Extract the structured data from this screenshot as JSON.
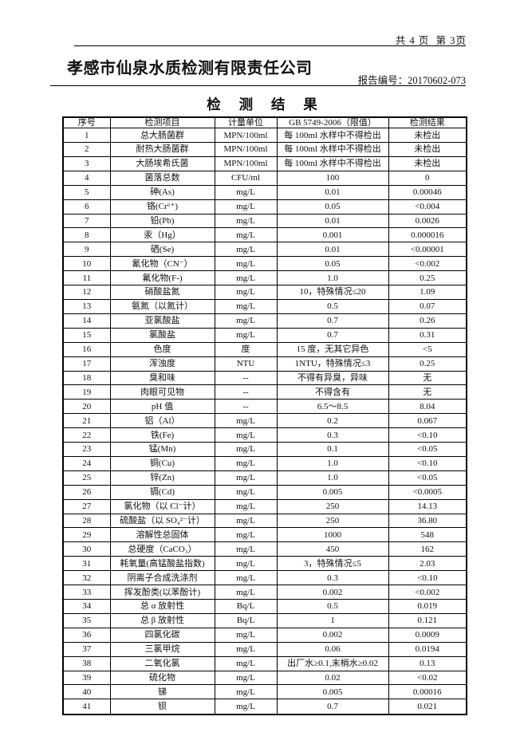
{
  "header": {
    "page_info": "共 4 页  第 3页",
    "company": "孝感市仙泉水质检测有限责任公司",
    "report_no_label": "报告编号：",
    "report_no": "20170602-073"
  },
  "title": "检 测 结 果",
  "table": {
    "headers": [
      "序号",
      "检测项目",
      "计量单位",
      "GB 5749-2006（限值）",
      "检测结果"
    ],
    "rows": [
      [
        "1",
        "总大肠菌群",
        "MPN/100ml",
        "每 100ml 水样中不得检出",
        "未检出"
      ],
      [
        "2",
        "耐热大肠菌群",
        "MPN/100ml",
        "每 100ml 水样中不得检出",
        "未检出"
      ],
      [
        "3",
        "大肠埃希氏菌",
        "MPN/100ml",
        "每 100ml 水样中不得检出",
        "未检出"
      ],
      [
        "4",
        "菌落总数",
        "CFU/ml",
        "100",
        "0"
      ],
      [
        "5",
        "砷(As)",
        "mg/L",
        "0.01",
        "0.00046"
      ],
      [
        "6",
        "铬(Cr⁶⁺)",
        "mg/L",
        "0.05",
        "<0.004"
      ],
      [
        "7",
        "铅(Pb)",
        "mg/L",
        "0.01",
        "0.0026"
      ],
      [
        "8",
        "汞（Hg）",
        "mg/L",
        "0.001",
        "0.000016"
      ],
      [
        "9",
        "硒(Se)",
        "mg/L",
        "0.01",
        "<0.00001"
      ],
      [
        "10",
        "氰化物（CN⁻）",
        "mg/L",
        "0.05",
        "<0.002"
      ],
      [
        "11",
        "氟化物(F-)",
        "mg/L",
        "1.0",
        "0.25"
      ],
      [
        "12",
        "硝酸盐氮",
        "mg/L",
        "10，特殊情况≤20",
        "1.09"
      ],
      [
        "13",
        "氨氮（以氮计）",
        "mg/L",
        "0.5",
        "0.07"
      ],
      [
        "14",
        "亚氯酸盐",
        "mg/L",
        "0.7",
        "0.26"
      ],
      [
        "15",
        "氯酸盐",
        "mg/L",
        "0.7",
        "0.31"
      ],
      [
        "16",
        "色度",
        "度",
        "15 度，无其它异色",
        "<5"
      ],
      [
        "17",
        "浑浊度",
        "NTU",
        "1NTU，特殊情况≤3",
        "0.25"
      ],
      [
        "18",
        "臭和味",
        "--",
        "不得有异臭，异味",
        "无"
      ],
      [
        "19",
        "肉眼可见物",
        "--",
        "不得含有",
        "无"
      ],
      [
        "20",
        "pH 值",
        "--",
        "6.5～8.5",
        "8.04"
      ],
      [
        "21",
        "铝（Al）",
        "mg/L",
        "0.2",
        "0.067"
      ],
      [
        "22",
        "铁(Fe)",
        "mg/L",
        "0.3",
        "<0.10"
      ],
      [
        "23",
        "锰(Mn)",
        "mg/L",
        "0.1",
        "<0.05"
      ],
      [
        "24",
        "铜(Cu)",
        "mg/L",
        "1.0",
        "<0.10"
      ],
      [
        "25",
        "锌(Zn)",
        "mg/L",
        "1.0",
        "<0.05"
      ],
      [
        "26",
        "镉(Cd)",
        "mg/L",
        "0.005",
        "<0.0005"
      ],
      [
        "27",
        "氯化物（以 Cl⁻计）",
        "mg/L",
        "250",
        "14.13"
      ],
      [
        "28",
        "硫酸盐（以 SO₄²⁻计）",
        "mg/L",
        "250",
        "36.80"
      ],
      [
        "29",
        "溶解性总固体",
        "mg/L",
        "1000",
        "548"
      ],
      [
        "30",
        "总硬度（CaCO₃）",
        "mg/L",
        "450",
        "162"
      ],
      [
        "31",
        "耗氧量(高锰酸盐指数)",
        "mg/L",
        "3，特殊情况≤5",
        "2.03"
      ],
      [
        "32",
        "阴离子合成洗涤剂",
        "mg/L",
        "0.3",
        "<0.10"
      ],
      [
        "33",
        "挥发酚类(以苯酚计)",
        "mg/L",
        "0.002",
        "<0.002"
      ],
      [
        "34",
        "总 α 放射性",
        "Bq/L",
        "0.5",
        "0.019"
      ],
      [
        "35",
        "总 β 放射性",
        "Bq/L",
        "1",
        "0.121"
      ],
      [
        "36",
        "四氯化碳",
        "mg/L",
        "0.002",
        "0.0009"
      ],
      [
        "37",
        "三氯甲烷",
        "mg/L",
        "0.06",
        "0.0194"
      ],
      [
        "38",
        "二氧化氯",
        "mg/L",
        "出厂水≥0.1,末梢水≥0.02",
        "0.13"
      ],
      [
        "39",
        "硫化物",
        "mg/L",
        "0.02",
        "<0.02"
      ],
      [
        "40",
        "锑",
        "mg/L",
        "0.005",
        "0.00016"
      ],
      [
        "41",
        "钡",
        "mg/L",
        "0.7",
        "0.021"
      ]
    ]
  }
}
